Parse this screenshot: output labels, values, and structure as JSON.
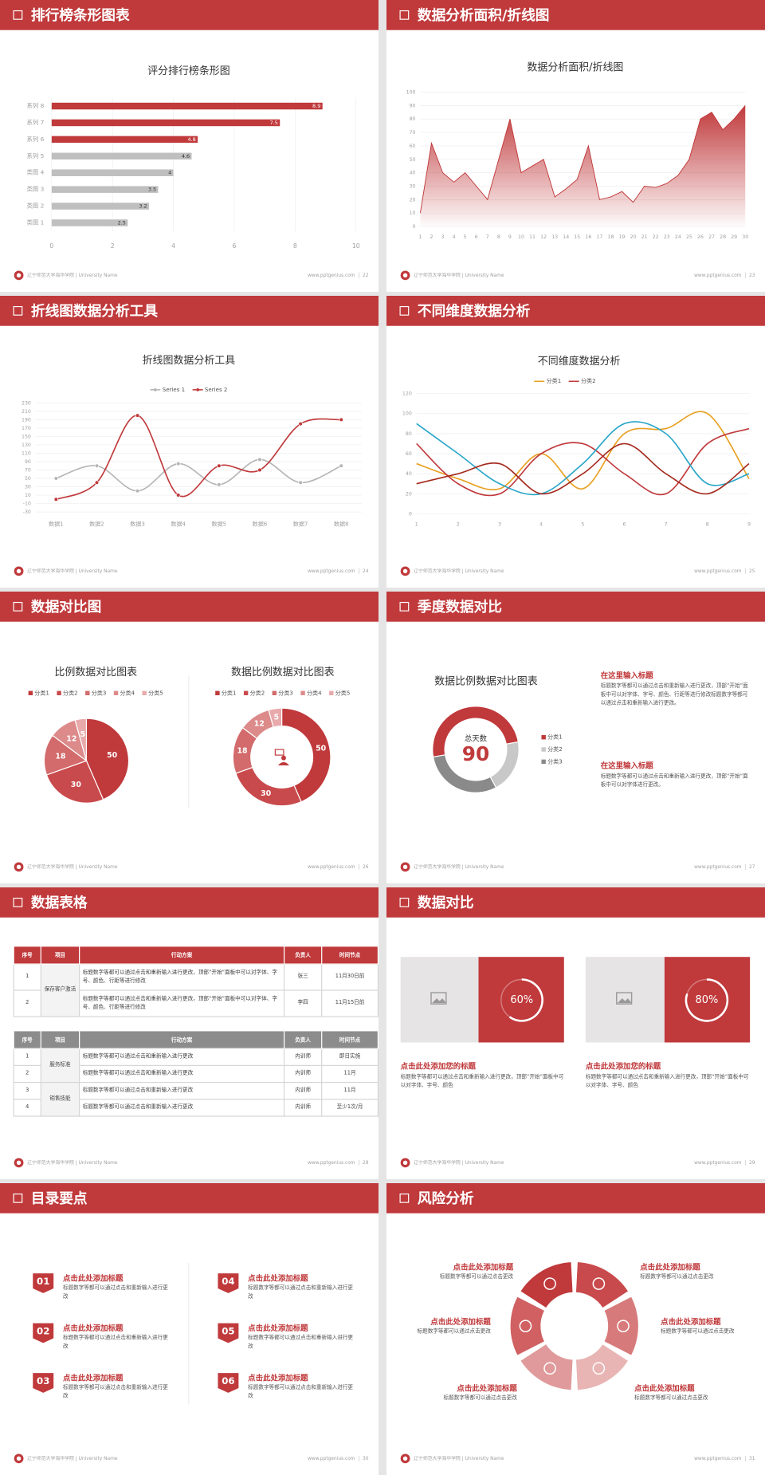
{
  "footer": {
    "school": "辽宁师范大学海华学院 | University Name",
    "url": "www.pptgenius.com"
  },
  "slides": [
    {
      "title": "排行榜条形图表",
      "page": 22
    },
    {
      "title": "数据分析面积/折线图",
      "page": 23
    },
    {
      "title": "折线图数据分析工具",
      "page": 24
    },
    {
      "title": "不同维度数据分析",
      "page": 25
    },
    {
      "title": "数据对比图",
      "page": 26
    },
    {
      "title": "季度数据对比",
      "page": 27
    },
    {
      "title": "数据表格",
      "page": 28
    },
    {
      "title": "数据对比",
      "page": 29
    },
    {
      "title": "目录要点",
      "page": 30
    },
    {
      "title": "风险分析",
      "page": 31
    }
  ],
  "chart_data": [
    {
      "type": "bar",
      "orientation": "horizontal",
      "title": "评分排行榜条形图",
      "categories": [
        "系列 8",
        "系列 7",
        "系列 6",
        "系列 5",
        "类图 4",
        "类图 3",
        "类图 2",
        "类图 1"
      ],
      "values": [
        8.9,
        7.5,
        4.8,
        4.6,
        4,
        3.5,
        3.2,
        2.5
      ],
      "colors": [
        "#c0393b",
        "#c0393b",
        "#c0393b",
        "#bfbfbf",
        "#bfbfbf",
        "#bfbfbf",
        "#bfbfbf",
        "#bfbfbf"
      ],
      "xlim": [
        0,
        10
      ],
      "xticks": [
        0,
        2,
        4,
        6,
        8,
        10
      ],
      "grid": true
    },
    {
      "type": "area",
      "title": "数据分析面积/折线图",
      "x": [
        1,
        2,
        3,
        4,
        5,
        6,
        7,
        8,
        9,
        10,
        11,
        12,
        13,
        14,
        15,
        16,
        17,
        18,
        19,
        20,
        21,
        22,
        23,
        24,
        25,
        26,
        27,
        28,
        29,
        30
      ],
      "values": [
        10,
        62,
        40,
        33,
        40,
        30,
        20,
        50,
        80,
        40,
        45,
        50,
        22,
        28,
        35,
        60,
        20,
        22,
        26,
        18,
        30,
        29,
        32,
        38,
        50,
        80,
        85,
        72,
        80,
        90
      ],
      "color": "#c0393b",
      "xlim": [
        1,
        30
      ],
      "xticks": [
        1,
        2,
        3,
        4,
        5,
        6,
        7,
        8,
        9,
        10,
        11,
        12,
        13,
        14,
        15,
        16,
        17,
        18,
        19,
        20,
        21,
        22,
        23,
        24,
        25,
        26,
        27,
        28,
        29,
        30
      ],
      "ylim": [
        0,
        100
      ],
      "yticks": [
        0,
        10,
        20,
        30,
        40,
        50,
        60,
        70,
        80,
        90,
        100
      ],
      "grid": true
    },
    {
      "type": "line",
      "smooth": true,
      "markers": true,
      "legend": "top",
      "title": "折线图数据分析工具",
      "categories": [
        "数据1",
        "数据2",
        "数据3",
        "数据4",
        "数据5",
        "数据6",
        "数据7",
        "数据8"
      ],
      "series": [
        {
          "name": "Series 1",
          "color": "#b5b5b5",
          "values": [
            50,
            80,
            20,
            85,
            35,
            95,
            40,
            80
          ]
        },
        {
          "name": "Series 2",
          "color": "#c0393b",
          "values": [
            0,
            40,
            200,
            10,
            80,
            70,
            180,
            190
          ]
        }
      ],
      "ylim": [
        -30,
        230
      ],
      "yticks": [
        -30,
        -10,
        10,
        30,
        50,
        70,
        90,
        110,
        130,
        150,
        170,
        190,
        210,
        230
      ],
      "grid": true
    },
    {
      "type": "line",
      "smooth": true,
      "markers": false,
      "legend": "top",
      "title": "不同维度数据分析",
      "x": [
        1,
        2,
        3,
        4,
        5,
        6,
        7,
        8,
        9
      ],
      "series": [
        {
          "name": "分类1",
          "color": "#e8a020",
          "values": [
            50,
            35,
            25,
            60,
            25,
            80,
            85,
            100,
            35
          ]
        },
        {
          "name": "分类2",
          "color": "#c0393b",
          "values": [
            70,
            30,
            20,
            60,
            70,
            40,
            20,
            70,
            85
          ]
        },
        {
          "color": "#2aa6c8",
          "values": [
            90,
            60,
            30,
            20,
            50,
            90,
            80,
            30,
            40
          ]
        },
        {
          "color": "#a52a1e",
          "values": [
            30,
            40,
            50,
            20,
            40,
            70,
            40,
            20,
            50
          ]
        }
      ],
      "xlim": [
        1,
        9
      ],
      "xticks": [
        1,
        2,
        3,
        4,
        5,
        6,
        7,
        8,
        9
      ],
      "ylim": [
        0,
        120
      ],
      "yticks": [
        0,
        20,
        40,
        60,
        80,
        100,
        120
      ],
      "grid": true
    },
    {
      "type": "pie",
      "legend": "top",
      "title": "比例数据对比图表",
      "categories": [
        "分类1",
        "分类2",
        "分类3",
        "分类4",
        "分类5"
      ],
      "values": [
        50,
        30,
        18,
        12,
        5
      ],
      "colors": [
        "#c0393b",
        "#c94a4c",
        "#d36a6b",
        "#dd8a8b",
        "#e8aaab"
      ]
    },
    {
      "type": "donut",
      "legend": "top",
      "title": "数据比例数据对比图表",
      "categories": [
        "分类1",
        "分类2",
        "分类3",
        "分类4",
        "分类5"
      ],
      "values": [
        50,
        30,
        18,
        12,
        5
      ],
      "colors": [
        "#c0393b",
        "#c94a4c",
        "#d36a6b",
        "#dd8a8b",
        "#e8aaab"
      ]
    },
    {
      "type": "donut",
      "legend": "right",
      "title": "数据比例数据对比图表",
      "categories": [
        "分类1",
        "分类2",
        "分类3"
      ],
      "values": [
        50,
        20,
        30
      ],
      "colors": [
        "#c0393b",
        "#c8c8c8",
        "#8a8a8a"
      ],
      "center_label": "总天数",
      "center_value": 90
    },
    {
      "type": "progress",
      "values": [
        60
      ],
      "value_labels": [
        "60%"
      ],
      "color": "#ffffff"
    },
    {
      "type": "progress",
      "values": [
        80
      ],
      "value_labels": [
        "80%"
      ],
      "color": "#ffffff"
    }
  ],
  "quarter": {
    "blocks": [
      {
        "title": "在这里输入标题",
        "text": "标题数字等都可以通过点击和重新输入进行更改，顶部“开始”面板中可以对字体、字号、颜色、行距等进行修改标题数字等都可以通过点击和重新输入进行更改。"
      },
      {
        "title": "在这里输入标题",
        "text": "标题数字等都可以通过点击和重新输入进行更改，顶部“开始”面板中可以对字体进行更改。"
      }
    ]
  },
  "tables": [
    {
      "header": [
        "序号",
        "项目",
        "行动方案",
        "负责人",
        "时间节点"
      ],
      "rows": [
        [
          1,
          "保存客户激活",
          "标题数字等都可以通过点击和重新输入进行更改，顶部“开始”面板中可以对字体、字号、颜色、行距等进行修改",
          "张三",
          "11月30日前"
        ],
        [
          2,
          null,
          "标题数字等都可以通过点击和重新输入进行更改，顶部“开始”面板中可以对字体、字号、颜色、行距等进行修改",
          "李四",
          "11月15日前"
        ]
      ]
    },
    {
      "header": [
        "序号",
        "项目",
        "行动方案",
        "负责人",
        "时间节点"
      ],
      "rows": [
        [
          1,
          "服务标准",
          "标题数字等都可以通过点击和重新输入进行更改",
          "内训师",
          "即日实施"
        ],
        [
          2,
          null,
          "标题数字等都可以通过点击和重新输入进行更改",
          "内训师",
          "11月"
        ],
        [
          3,
          "销售技能",
          "标题数字等都可以通过点击和重新输入进行更改",
          "内训师",
          "11月"
        ],
        [
          4,
          null,
          "标题数字等都可以通过点击和重新输入进行更改",
          "内训师",
          "至少1次/月"
        ]
      ]
    }
  ],
  "compare": {
    "blocks": [
      {
        "title": "点击此处添加您的标题",
        "text": "标题数字等都可以通过点击和重新输入进行更改，顶部“开始”面板中可以对字体、字号、颜色"
      },
      {
        "title": "点击此处添加您的标题",
        "text": "标题数字等都可以通过点击和重新输入进行更改，顶部“开始”面板中可以对字体、字号、颜色"
      }
    ]
  },
  "toc": {
    "items": [
      {
        "num": "01",
        "title": "点击此处添加标题",
        "text": "标题数字等都可以通过点击和重新输入进行更改"
      },
      {
        "num": "02",
        "title": "点击此处添加标题",
        "text": "标题数字等都可以通过点击和重新输入进行更改"
      },
      {
        "num": "03",
        "title": "点击此处添加标题",
        "text": "标题数字等都可以通过点击和重新输入进行更改"
      },
      {
        "num": "04",
        "title": "点击此处添加标题",
        "text": "标题数字等都可以通过点击和重新输入进行更改"
      },
      {
        "num": "05",
        "title": "点击此处添加标题",
        "text": "标题数字等都可以通过点击和重新输入进行更改"
      },
      {
        "num": "06",
        "title": "点击此处添加标题",
        "text": "标题数字等都可以通过点击和重新输入进行更改"
      }
    ]
  },
  "risk": {
    "items": [
      {
        "title": "点击此处添加标题",
        "text": "标题数字等都可以通过点击更改"
      },
      {
        "title": "点击此处添加标题",
        "text": "标题数字等都可以通过点击更改"
      },
      {
        "title": "点击此处添加标题",
        "text": "标题数字等都可以通过点击更改"
      },
      {
        "title": "点击此处添加标题",
        "text": "标题数字等都可以通过点击更改"
      },
      {
        "title": "点击此处添加标题",
        "text": "标题数字等都可以通过点击更改"
      },
      {
        "title": "点击此处添加标题",
        "text": "标题数字等都可以通过点击更改"
      }
    ]
  }
}
